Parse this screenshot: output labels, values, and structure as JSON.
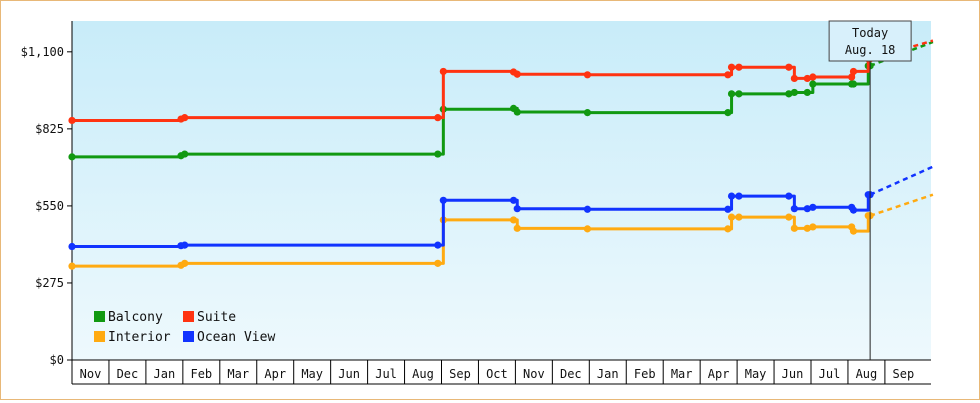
{
  "chart_data": {
    "type": "line",
    "step": true,
    "title": "",
    "xlabel": "",
    "ylabel": "",
    "ylim": [
      0,
      1210
    ],
    "yticks": [
      0,
      275,
      550,
      825,
      1100
    ],
    "ytick_labels": [
      "$0",
      "$275",
      "$550",
      "$825",
      "$1,100"
    ],
    "x_months": [
      "Nov",
      "Dec",
      "Jan",
      "Feb",
      "Mar",
      "Apr",
      "May",
      "Jun",
      "Jul",
      "Aug",
      "Sep",
      "Oct",
      "Nov",
      "Dec",
      "Jan",
      "Feb",
      "Mar",
      "Apr",
      "May",
      "Jun",
      "Jul",
      "Aug",
      "Sep"
    ],
    "x_units": "month index (0 = Nov)",
    "today": {
      "line1": "Today",
      "line2": "Aug. 18",
      "x": 21.6
    },
    "grid": false,
    "legend_position": "bottom-left",
    "series": [
      {
        "name": "Balcony",
        "color": "#119911",
        "points": [
          [
            0,
            725
          ],
          [
            2.95,
            729
          ],
          [
            3.05,
            735
          ],
          [
            9.9,
            735
          ],
          [
            10.05,
            895
          ],
          [
            11.95,
            898
          ],
          [
            12.05,
            885
          ],
          [
            13.95,
            883
          ],
          [
            17.75,
            883
          ],
          [
            17.85,
            950
          ],
          [
            18.05,
            950
          ],
          [
            19.4,
            950
          ],
          [
            19.55,
            955
          ],
          [
            19.9,
            955
          ],
          [
            20.05,
            985
          ],
          [
            21.1,
            985
          ],
          [
            21.15,
            985
          ],
          [
            21.55,
            1050
          ],
          [
            21.6,
            1050
          ]
        ],
        "forecast": [
          [
            21.6,
            1050
          ],
          [
            23.3,
            1135
          ]
        ]
      },
      {
        "name": "Suite",
        "color": "#ff3311",
        "points": [
          [
            0,
            855
          ],
          [
            2.95,
            860
          ],
          [
            3.05,
            865
          ],
          [
            9.9,
            865
          ],
          [
            10.05,
            1030
          ],
          [
            11.95,
            1028
          ],
          [
            12.05,
            1020
          ],
          [
            13.95,
            1018
          ],
          [
            17.75,
            1018
          ],
          [
            17.85,
            1045
          ],
          [
            18.05,
            1045
          ],
          [
            19.4,
            1045
          ],
          [
            19.55,
            1005
          ],
          [
            19.9,
            1005
          ],
          [
            20.05,
            1010
          ],
          [
            21.1,
            1010
          ],
          [
            21.15,
            1030
          ],
          [
            21.55,
            1075
          ],
          [
            21.6,
            1075
          ]
        ],
        "forecast": [
          [
            21.6,
            1075
          ],
          [
            23.3,
            1140
          ]
        ]
      },
      {
        "name": "Interior",
        "color": "#ffaa11",
        "points": [
          [
            0,
            335
          ],
          [
            2.95,
            338
          ],
          [
            3.05,
            345
          ],
          [
            9.9,
            345
          ],
          [
            10.05,
            500
          ],
          [
            11.95,
            500
          ],
          [
            12.05,
            470
          ],
          [
            13.95,
            468
          ],
          [
            17.75,
            468
          ],
          [
            17.85,
            510
          ],
          [
            18.05,
            510
          ],
          [
            19.4,
            510
          ],
          [
            19.55,
            470
          ],
          [
            19.9,
            470
          ],
          [
            20.05,
            475
          ],
          [
            21.1,
            475
          ],
          [
            21.15,
            460
          ],
          [
            21.55,
            515
          ],
          [
            21.6,
            515
          ]
        ],
        "forecast": [
          [
            21.6,
            515
          ],
          [
            23.3,
            590
          ]
        ]
      },
      {
        "name": "Ocean View",
        "color": "#1133ff",
        "points": [
          [
            0,
            405
          ],
          [
            2.95,
            408
          ],
          [
            3.05,
            410
          ],
          [
            9.9,
            410
          ],
          [
            10.05,
            570
          ],
          [
            11.95,
            570
          ],
          [
            12.05,
            540
          ],
          [
            13.95,
            538
          ],
          [
            17.75,
            538
          ],
          [
            17.85,
            585
          ],
          [
            18.05,
            585
          ],
          [
            19.4,
            585
          ],
          [
            19.55,
            540
          ],
          [
            19.9,
            540
          ],
          [
            20.05,
            545
          ],
          [
            21.1,
            545
          ],
          [
            21.15,
            535
          ],
          [
            21.55,
            590
          ],
          [
            21.6,
            590
          ]
        ],
        "forecast": [
          [
            21.6,
            590
          ],
          [
            23.3,
            690
          ]
        ]
      }
    ]
  }
}
